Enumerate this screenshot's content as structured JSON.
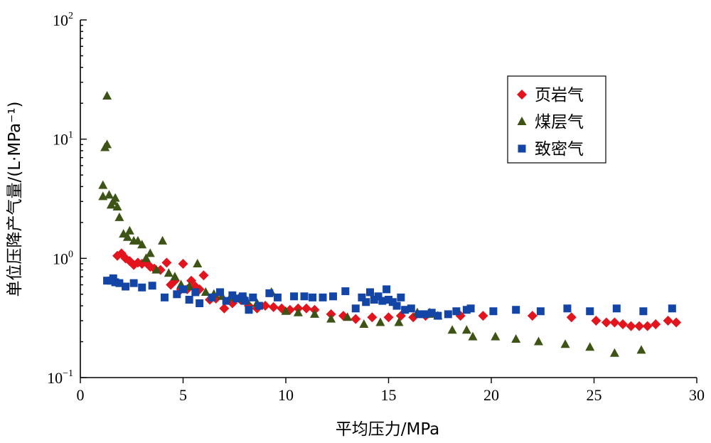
{
  "chart_data": {
    "type": "scatter",
    "xlabel": "平均压力/MPa",
    "ylabel": "单位压降产气量/(L·MPa⁻¹)",
    "yscale": "log",
    "xlim": [
      0,
      30
    ],
    "ylim": [
      0.1,
      100
    ],
    "x_ticks": [
      0,
      5,
      10,
      15,
      20,
      25,
      30
    ],
    "y_ticks": [
      {
        "value": 0.1,
        "base": "10",
        "exp": "−1"
      },
      {
        "value": 1,
        "base": "10",
        "exp": "0"
      },
      {
        "value": 10,
        "base": "10",
        "exp": "1"
      },
      {
        "value": 100,
        "base": "10",
        "exp": "2"
      }
    ],
    "legend_position": "top-right",
    "series": [
      {
        "name": "页岩气",
        "marker": "diamond",
        "color": "#e2141e",
        "points": [
          [
            1.8,
            1.05
          ],
          [
            2.0,
            1.1
          ],
          [
            2.2,
            1.0
          ],
          [
            2.4,
            0.95
          ],
          [
            2.6,
            0.88
          ],
          [
            2.8,
            0.92
          ],
          [
            3.0,
            0.9
          ],
          [
            3.2,
            0.92
          ],
          [
            3.4,
            0.85
          ],
          [
            3.6,
            0.82
          ],
          [
            3.9,
            0.8
          ],
          [
            4.2,
            0.92
          ],
          [
            4.4,
            0.6
          ],
          [
            4.6,
            0.65
          ],
          [
            4.9,
            0.55
          ],
          [
            5.0,
            0.9
          ],
          [
            5.2,
            0.55
          ],
          [
            5.4,
            0.65
          ],
          [
            5.6,
            0.58
          ],
          [
            5.8,
            0.55
          ],
          [
            6.0,
            0.72
          ],
          [
            6.3,
            0.45
          ],
          [
            6.6,
            0.46
          ],
          [
            7.0,
            0.38
          ],
          [
            7.4,
            0.42
          ],
          [
            7.8,
            0.45
          ],
          [
            8.2,
            0.4
          ],
          [
            8.6,
            0.38
          ],
          [
            9.0,
            0.4
          ],
          [
            9.4,
            0.39
          ],
          [
            9.8,
            0.38
          ],
          [
            10.2,
            0.37
          ],
          [
            10.6,
            0.38
          ],
          [
            11.0,
            0.38
          ],
          [
            11.4,
            0.37
          ],
          [
            12.2,
            0.34
          ],
          [
            12.8,
            0.33
          ],
          [
            13.4,
            0.31
          ],
          [
            14.2,
            0.32
          ],
          [
            15.0,
            0.32
          ],
          [
            15.6,
            0.33
          ],
          [
            16.2,
            0.32
          ],
          [
            16.8,
            0.33
          ],
          [
            18.5,
            0.33
          ],
          [
            19.6,
            0.33
          ],
          [
            22.0,
            0.33
          ],
          [
            23.9,
            0.32
          ],
          [
            25.1,
            0.3
          ],
          [
            25.6,
            0.29
          ],
          [
            26.0,
            0.29
          ],
          [
            26.4,
            0.28
          ],
          [
            26.8,
            0.27
          ],
          [
            27.2,
            0.27
          ],
          [
            27.6,
            0.27
          ],
          [
            28.0,
            0.28
          ],
          [
            28.6,
            0.3
          ],
          [
            29.0,
            0.29
          ]
        ]
      },
      {
        "name": "煤层气",
        "marker": "triangle",
        "color": "#3d5416",
        "points": [
          [
            1.1,
            4.1
          ],
          [
            1.1,
            3.3
          ],
          [
            1.2,
            8.5
          ],
          [
            1.3,
            9.0
          ],
          [
            1.3,
            23.0
          ],
          [
            1.4,
            3.4
          ],
          [
            1.5,
            2.8
          ],
          [
            1.6,
            3.0
          ],
          [
            1.7,
            3.2
          ],
          [
            1.8,
            2.7
          ],
          [
            1.9,
            2.2
          ],
          [
            2.1,
            1.6
          ],
          [
            2.3,
            1.5
          ],
          [
            2.4,
            1.7
          ],
          [
            2.6,
            1.4
          ],
          [
            2.8,
            1.4
          ],
          [
            3.0,
            1.3
          ],
          [
            3.2,
            1.0
          ],
          [
            3.4,
            1.1
          ],
          [
            3.7,
            0.8
          ],
          [
            4.0,
            1.4
          ],
          [
            4.3,
            0.75
          ],
          [
            4.6,
            0.7
          ],
          [
            4.9,
            0.6
          ],
          [
            5.3,
            0.58
          ],
          [
            5.7,
            0.9
          ],
          [
            6.1,
            0.52
          ],
          [
            6.5,
            0.5
          ],
          [
            6.9,
            0.48
          ],
          [
            7.3,
            0.47
          ],
          [
            7.7,
            0.46
          ],
          [
            8.1,
            0.44
          ],
          [
            8.6,
            0.42
          ],
          [
            9.3,
            0.52
          ],
          [
            10.0,
            0.36
          ],
          [
            10.6,
            0.35
          ],
          [
            11.4,
            0.34
          ],
          [
            12.2,
            0.31
          ],
          [
            13.0,
            0.32
          ],
          [
            13.8,
            0.28
          ],
          [
            14.6,
            0.29
          ],
          [
            15.5,
            0.29
          ],
          [
            16.4,
            0.35
          ],
          [
            17.2,
            0.34
          ],
          [
            17.0,
            0.35
          ],
          [
            17.4,
            0.33
          ],
          [
            18.1,
            0.25
          ],
          [
            18.8,
            0.25
          ],
          [
            19.1,
            0.22
          ],
          [
            20.2,
            0.22
          ],
          [
            21.2,
            0.21
          ],
          [
            22.3,
            0.2
          ],
          [
            23.6,
            0.19
          ],
          [
            24.8,
            0.18
          ],
          [
            26.0,
            0.16
          ],
          [
            27.3,
            0.17
          ]
        ]
      },
      {
        "name": "致密气",
        "marker": "square",
        "color": "#1245a5",
        "points": [
          [
            1.3,
            0.65
          ],
          [
            1.5,
            0.65
          ],
          [
            1.6,
            0.68
          ],
          [
            1.7,
            0.63
          ],
          [
            1.9,
            0.62
          ],
          [
            2.2,
            0.58
          ],
          [
            2.6,
            0.62
          ],
          [
            3.0,
            0.57
          ],
          [
            3.5,
            0.59
          ],
          [
            4.1,
            0.47
          ],
          [
            4.7,
            0.5
          ],
          [
            5.0,
            0.55
          ],
          [
            5.3,
            0.45
          ],
          [
            5.6,
            0.52
          ],
          [
            5.8,
            0.42
          ],
          [
            6.4,
            0.47
          ],
          [
            6.8,
            0.52
          ],
          [
            7.1,
            0.44
          ],
          [
            7.4,
            0.49
          ],
          [
            7.6,
            0.46
          ],
          [
            7.9,
            0.48
          ],
          [
            8.0,
            0.44
          ],
          [
            8.2,
            0.37
          ],
          [
            8.4,
            0.47
          ],
          [
            8.7,
            0.4
          ],
          [
            9.2,
            0.51
          ],
          [
            9.6,
            0.47
          ],
          [
            10.4,
            0.48
          ],
          [
            10.9,
            0.48
          ],
          [
            11.3,
            0.47
          ],
          [
            11.8,
            0.47
          ],
          [
            12.3,
            0.48
          ],
          [
            12.9,
            0.53
          ],
          [
            13.4,
            0.38
          ],
          [
            13.7,
            0.47
          ],
          [
            13.9,
            0.43
          ],
          [
            14.1,
            0.52
          ],
          [
            14.3,
            0.45
          ],
          [
            14.5,
            0.48
          ],
          [
            14.7,
            0.44
          ],
          [
            14.9,
            0.55
          ],
          [
            15.0,
            0.45
          ],
          [
            15.2,
            0.43
          ],
          [
            15.4,
            0.4
          ],
          [
            15.6,
            0.47
          ],
          [
            15.8,
            0.37
          ],
          [
            16.1,
            0.38
          ],
          [
            16.5,
            0.34
          ],
          [
            16.8,
            0.34
          ],
          [
            17.1,
            0.35
          ],
          [
            17.4,
            0.33
          ],
          [
            17.9,
            0.34
          ],
          [
            18.3,
            0.36
          ],
          [
            18.8,
            0.37
          ],
          [
            19.0,
            0.38
          ],
          [
            20.1,
            0.36
          ],
          [
            21.2,
            0.37
          ],
          [
            22.4,
            0.36
          ],
          [
            23.7,
            0.38
          ],
          [
            24.8,
            0.36
          ],
          [
            26.1,
            0.38
          ],
          [
            27.4,
            0.36
          ],
          [
            28.8,
            0.38
          ]
        ]
      }
    ]
  }
}
